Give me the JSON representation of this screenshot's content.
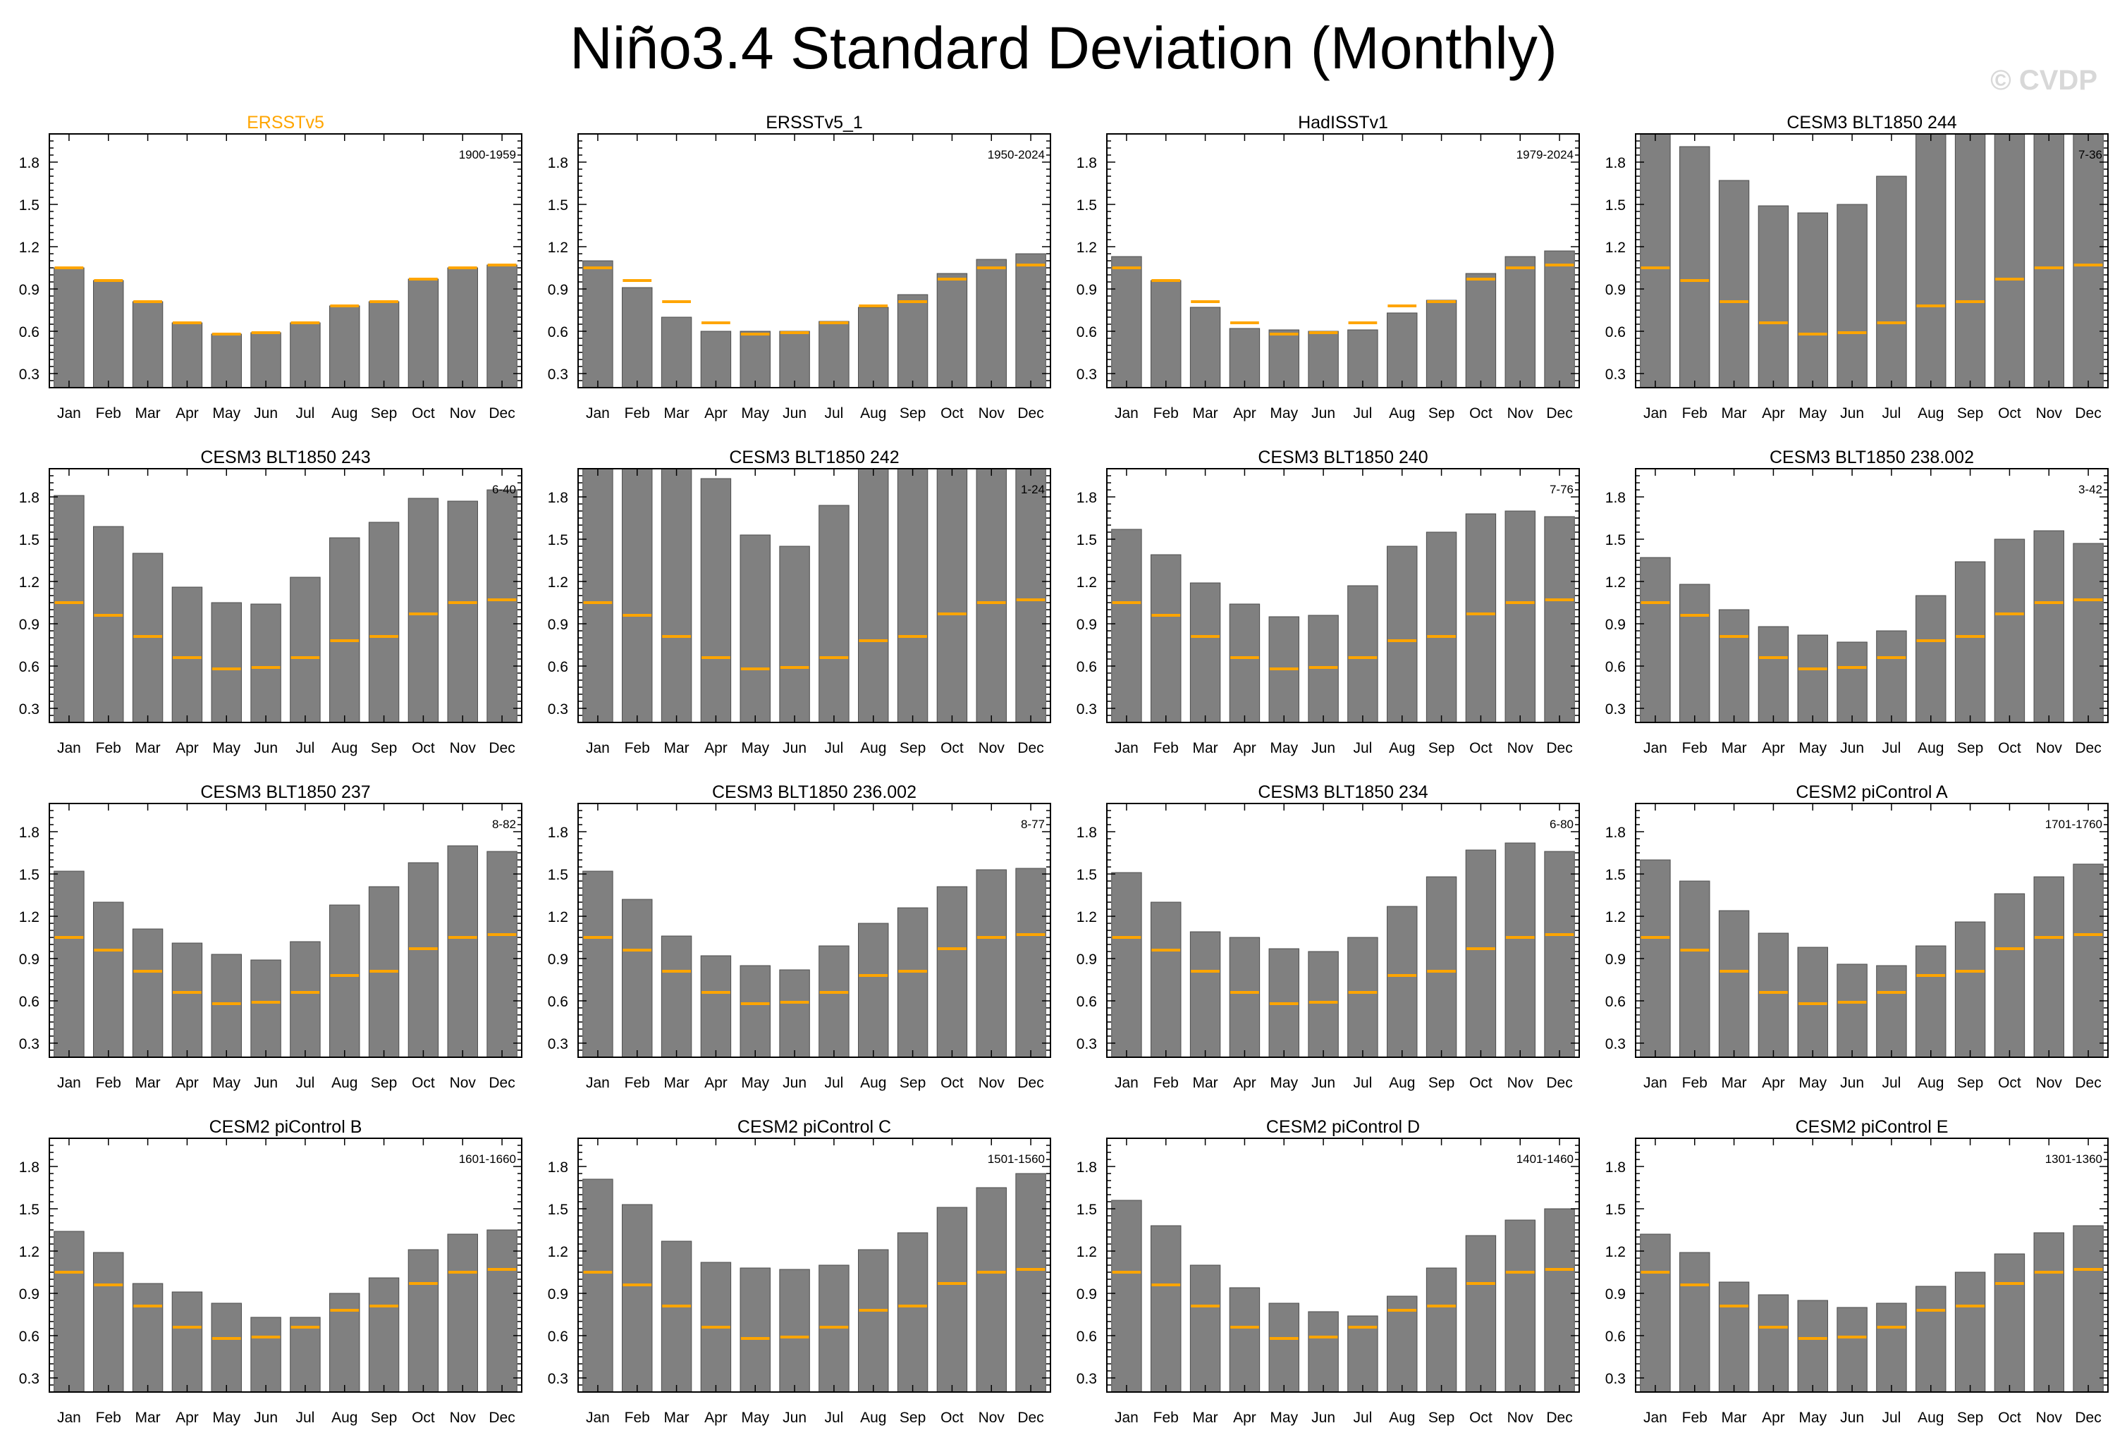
{
  "title": "Niño3.4 Standard Deviation (Monthly)",
  "watermark": "© CVDP",
  "colors": {
    "bar": "#808080",
    "bar_edge": "#4d4d4d",
    "reference": "#ffa500",
    "highlight_title": "#ffa500"
  },
  "chart_data": {
    "type": "bar",
    "categories": [
      "Jan",
      "Feb",
      "Mar",
      "Apr",
      "May",
      "Jun",
      "Jul",
      "Aug",
      "Sep",
      "Oct",
      "Nov",
      "Dec"
    ],
    "ylim": [
      0.2,
      2.0
    ],
    "yticks": [
      "0.3",
      "0.6",
      "0.9",
      "1.2",
      "1.5",
      "1.8"
    ],
    "reference_name": "ERSSTv5",
    "reference_values": [
      1.05,
      0.96,
      0.81,
      0.66,
      0.58,
      0.59,
      0.66,
      0.78,
      0.81,
      0.97,
      1.05,
      1.07
    ],
    "panels": [
      {
        "title": "ERSSTv5",
        "years": "1900-1959",
        "highlight": true,
        "values": [
          1.05,
          0.96,
          0.81,
          0.66,
          0.58,
          0.59,
          0.66,
          0.78,
          0.81,
          0.97,
          1.05,
          1.07
        ]
      },
      {
        "title": "ERSSTv5_1",
        "years": "1950-2024",
        "values": [
          1.1,
          0.91,
          0.7,
          0.6,
          0.6,
          0.6,
          0.67,
          0.77,
          0.86,
          1.01,
          1.11,
          1.15
        ]
      },
      {
        "title": "HadISSTv1",
        "years": "1979-2024",
        "values": [
          1.13,
          0.96,
          0.77,
          0.62,
          0.61,
          0.6,
          0.61,
          0.73,
          0.82,
          1.01,
          1.13,
          1.17
        ]
      },
      {
        "title": "CESM3 BLT1850 244",
        "years": "7-36",
        "values": [
          2.05,
          1.91,
          1.67,
          1.49,
          1.44,
          1.5,
          1.7,
          2.05,
          2.05,
          2.05,
          2.05,
          2.05
        ]
      },
      {
        "title": "CESM3 BLT1850 243",
        "years": "6-40",
        "values": [
          1.81,
          1.59,
          1.4,
          1.16,
          1.05,
          1.04,
          1.23,
          1.51,
          1.62,
          1.79,
          1.77,
          1.85
        ]
      },
      {
        "title": "CESM3 BLT1850 242",
        "years": "1-24",
        "values": [
          2.05,
          2.05,
          2.05,
          1.93,
          1.53,
          1.45,
          1.74,
          2.05,
          2.05,
          2.05,
          2.05,
          2.05
        ]
      },
      {
        "title": "CESM3 BLT1850 240",
        "years": "7-76",
        "values": [
          1.57,
          1.39,
          1.19,
          1.04,
          0.95,
          0.96,
          1.17,
          1.45,
          1.55,
          1.68,
          1.7,
          1.66
        ]
      },
      {
        "title": "CESM3 BLT1850 238.002",
        "years": "3-42",
        "values": [
          1.37,
          1.18,
          1.0,
          0.88,
          0.82,
          0.77,
          0.85,
          1.1,
          1.34,
          1.5,
          1.56,
          1.47
        ]
      },
      {
        "title": "CESM3 BLT1850 237",
        "years": "8-82",
        "values": [
          1.52,
          1.3,
          1.11,
          1.01,
          0.93,
          0.89,
          1.02,
          1.28,
          1.41,
          1.58,
          1.7,
          1.66
        ]
      },
      {
        "title": "CESM3 BLT1850 236.002",
        "years": "8-77",
        "values": [
          1.52,
          1.32,
          1.06,
          0.92,
          0.85,
          0.82,
          0.99,
          1.15,
          1.26,
          1.41,
          1.53,
          1.54
        ]
      },
      {
        "title": "CESM3 BLT1850 234",
        "years": "6-80",
        "values": [
          1.51,
          1.3,
          1.09,
          1.05,
          0.97,
          0.95,
          1.05,
          1.27,
          1.48,
          1.67,
          1.72,
          1.66
        ]
      },
      {
        "title": "CESM2 piControl A",
        "years": "1701-1760",
        "values": [
          1.6,
          1.45,
          1.24,
          1.08,
          0.98,
          0.86,
          0.85,
          0.99,
          1.16,
          1.36,
          1.48,
          1.57
        ]
      },
      {
        "title": "CESM2 piControl B",
        "years": "1601-1660",
        "values": [
          1.34,
          1.19,
          0.97,
          0.91,
          0.83,
          0.73,
          0.73,
          0.9,
          1.01,
          1.21,
          1.32,
          1.35
        ]
      },
      {
        "title": "CESM2 piControl C",
        "years": "1501-1560",
        "values": [
          1.71,
          1.53,
          1.27,
          1.12,
          1.08,
          1.07,
          1.1,
          1.21,
          1.33,
          1.51,
          1.65,
          1.75
        ]
      },
      {
        "title": "CESM2 piControl D",
        "years": "1401-1460",
        "values": [
          1.56,
          1.38,
          1.1,
          0.94,
          0.83,
          0.77,
          0.74,
          0.88,
          1.08,
          1.31,
          1.42,
          1.5
        ]
      },
      {
        "title": "CESM2 piControl E",
        "years": "1301-1360",
        "values": [
          1.32,
          1.19,
          0.98,
          0.89,
          0.85,
          0.8,
          0.83,
          0.95,
          1.05,
          1.18,
          1.33,
          1.38
        ]
      }
    ]
  }
}
